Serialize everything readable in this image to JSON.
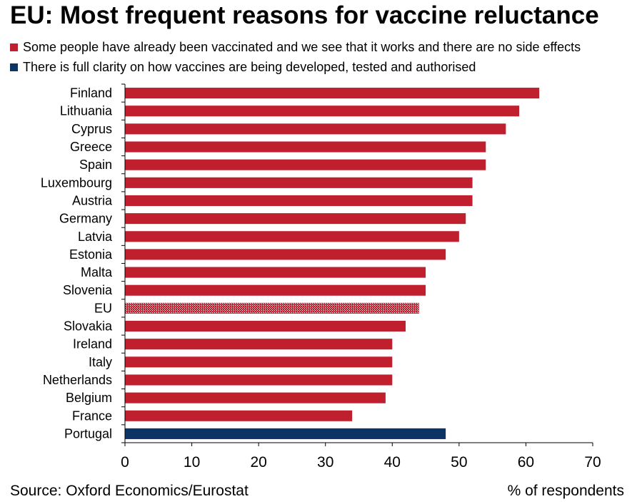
{
  "chart_data": {
    "type": "bar",
    "orientation": "horizontal",
    "title": "EU: Most frequent reasons for vaccine reluctance",
    "legend": [
      {
        "name": "Some people have already been vaccinated and we see that it works and there are no side effects",
        "color": "#c0202e"
      },
      {
        "name": "There is full clarity on how vaccines are being developed, tested and authorised",
        "color": "#0c3566"
      }
    ],
    "legend_position": "top-left",
    "categories": [
      "Finland",
      "Lithuania",
      "Cyprus",
      "Greece",
      "Spain",
      "Luxembourg",
      "Austria",
      "Germany",
      "Latvia",
      "Estonia",
      "Malta",
      "Slovenia",
      "EU",
      "Slovakia",
      "Ireland",
      "Italy",
      "Netherlands",
      "Belgium",
      "France",
      "Portugal"
    ],
    "values": [
      62,
      59,
      57,
      54,
      54,
      52,
      52,
      51,
      50,
      48,
      45,
      45,
      44,
      42,
      40,
      40,
      40,
      39,
      34,
      48
    ],
    "series_index": [
      0,
      0,
      0,
      0,
      0,
      0,
      0,
      0,
      0,
      0,
      0,
      0,
      0,
      0,
      0,
      0,
      0,
      0,
      0,
      1
    ],
    "highlight_category": "EU",
    "xlim": [
      0,
      70
    ],
    "xticks": [
      0,
      10,
      20,
      30,
      40,
      50,
      60,
      70
    ],
    "grid": false,
    "source": "Source: Oxford Economics/Eurostat",
    "unit_label": "% of respondents"
  }
}
